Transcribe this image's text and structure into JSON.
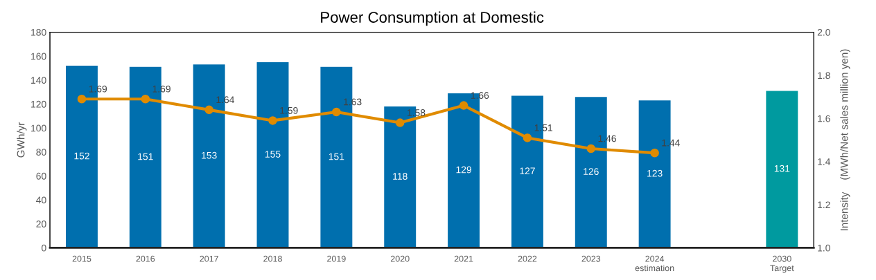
{
  "chart_data": {
    "type": "bar",
    "title": "Power Consumption at Domestic",
    "categories": [
      "2015",
      "2016",
      "2017",
      "2018",
      "2019",
      "2020",
      "2021",
      "2022",
      "2023",
      "2024\nestimation",
      null,
      "2030\nTarget"
    ],
    "series": [
      {
        "values": [
          152,
          151,
          153,
          155,
          151,
          118,
          129,
          127,
          126,
          123,
          null,
          131
        ],
        "colors": [
          "#006fae",
          "#006fae",
          "#006fae",
          "#006fae",
          "#006fae",
          "#006fae",
          "#006fae",
          "#006fae",
          "#006fae",
          "#006fae",
          "#006fae",
          "#009a9f"
        ]
      },
      {
        "type": "line",
        "axis": "y2",
        "color": "#e08b00",
        "marker": "circle",
        "values": [
          1.69,
          1.69,
          1.64,
          1.59,
          1.63,
          1.58,
          1.66,
          1.51,
          1.46,
          1.44,
          null,
          null
        ]
      }
    ],
    "ylabel": "GWh/yr",
    "y2label": "Intensity    (MWh/Net sales million yen)",
    "ylim": [
      0,
      180
    ],
    "yticks": [
      0,
      20,
      40,
      60,
      80,
      100,
      120,
      140,
      160,
      180
    ],
    "y2lim": [
      1.0,
      2.0
    ],
    "y2ticks": [
      {
        "value": 1.0,
        "label": "1.0"
      },
      {
        "value": 1.2,
        "label": "1.2"
      },
      {
        "value": 1.4,
        "label": "1.4"
      },
      {
        "value": 1.6,
        "label": "1.6"
      },
      {
        "value": 1.8,
        "label": "1.8"
      },
      {
        "value": 2.0,
        "label": "2.0"
      }
    ],
    "data_labels": true,
    "grid": false,
    "legend": false
  }
}
